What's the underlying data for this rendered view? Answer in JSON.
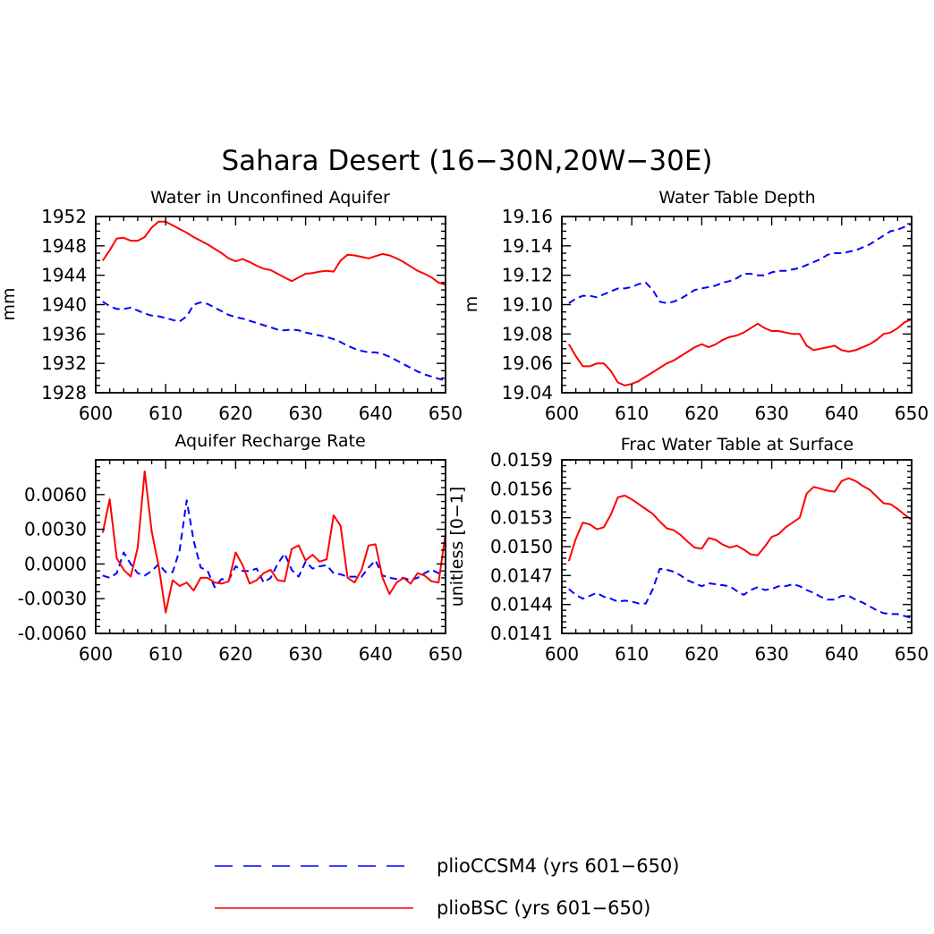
{
  "figure": {
    "title": "Sahara Desert (16−30N,20W−30E)"
  },
  "series_styles": [
    {
      "name": "plioCCSM4 (yrs 601−650)",
      "color": "#0000ff",
      "dash": "dashed"
    },
    {
      "name": "plioBSC (yrs 601−650)",
      "color": "#ff0000",
      "dash": "solid"
    }
  ],
  "chart_data": [
    {
      "type": "line",
      "title": "Water in Unconfined Aquifer",
      "xlabel": "",
      "ylabel": "mm",
      "xlim": [
        600,
        650
      ],
      "ylim": [
        1928,
        1952
      ],
      "xticks": [
        "600",
        "610",
        "620",
        "630",
        "640",
        "650"
      ],
      "yticks": [
        "1928",
        "1932",
        "1936",
        "1940",
        "1944",
        "1948",
        "1952"
      ],
      "x": [
        601,
        602,
        603,
        604,
        605,
        606,
        607,
        608,
        609,
        610,
        611,
        612,
        613,
        614,
        615,
        616,
        617,
        618,
        619,
        620,
        621,
        622,
        623,
        624,
        625,
        626,
        627,
        628,
        629,
        630,
        631,
        632,
        633,
        634,
        635,
        636,
        637,
        638,
        639,
        640,
        641,
        642,
        643,
        644,
        645,
        646,
        647,
        648,
        649,
        650
      ],
      "series": [
        {
          "name": "plioCCSM4 (yrs 601−650)",
          "values": [
            1940.4,
            1939.8,
            1939.4,
            1939.4,
            1939.6,
            1939.2,
            1938.8,
            1938.5,
            1938.4,
            1938.2,
            1937.9,
            1937.7,
            1938.4,
            1940.0,
            1940.3,
            1940.1,
            1939.6,
            1939.1,
            1938.6,
            1938.3,
            1938.1,
            1937.8,
            1937.5,
            1937.2,
            1936.9,
            1936.6,
            1936.5,
            1936.6,
            1936.5,
            1936.2,
            1936.0,
            1935.8,
            1935.6,
            1935.3,
            1934.9,
            1934.4,
            1934.0,
            1933.7,
            1933.5,
            1933.5,
            1933.3,
            1932.9,
            1932.4,
            1931.9,
            1931.4,
            1930.9,
            1930.5,
            1930.2,
            1929.9,
            1929.7
          ]
        },
        {
          "name": "plioBSC (yrs 601−650)",
          "values": [
            1946.0,
            1947.4,
            1949.0,
            1949.1,
            1948.7,
            1948.7,
            1949.2,
            1950.5,
            1951.3,
            1951.3,
            1950.8,
            1950.3,
            1949.8,
            1949.2,
            1948.7,
            1948.2,
            1947.6,
            1947.0,
            1946.3,
            1945.9,
            1946.2,
            1945.8,
            1945.3,
            1944.9,
            1944.7,
            1944.2,
            1943.7,
            1943.2,
            1943.7,
            1944.2,
            1944.3,
            1944.5,
            1944.6,
            1944.5,
            1946.0,
            1946.8,
            1946.7,
            1946.5,
            1946.3,
            1946.6,
            1946.9,
            1946.7,
            1946.3,
            1945.8,
            1945.2,
            1944.6,
            1944.2,
            1943.7,
            1943.0,
            1942.7
          ]
        }
      ]
    },
    {
      "type": "line",
      "title": "Water Table Depth",
      "xlabel": "",
      "ylabel": "m",
      "xlim": [
        600,
        650
      ],
      "ylim": [
        19.04,
        19.16
      ],
      "xticks": [
        "600",
        "610",
        "620",
        "630",
        "640",
        "650"
      ],
      "yticks": [
        "19.04",
        "19.06",
        "19.08",
        "19.10",
        "19.12",
        "19.14",
        "19.16"
      ],
      "x": [
        601,
        602,
        603,
        604,
        605,
        606,
        607,
        608,
        609,
        610,
        611,
        612,
        613,
        614,
        615,
        616,
        617,
        618,
        619,
        620,
        621,
        622,
        623,
        624,
        625,
        626,
        627,
        628,
        629,
        630,
        631,
        632,
        633,
        634,
        635,
        636,
        637,
        638,
        639,
        640,
        641,
        642,
        643,
        644,
        645,
        646,
        647,
        648,
        649,
        650
      ],
      "series": [
        {
          "name": "plioCCSM4 (yrs 601−650)",
          "values": [
            19.101,
            19.104,
            19.106,
            19.106,
            19.105,
            19.107,
            19.109,
            19.111,
            19.111,
            19.112,
            19.114,
            19.115,
            19.11,
            19.102,
            19.101,
            19.102,
            19.104,
            19.107,
            19.11,
            19.111,
            19.112,
            19.113,
            19.115,
            19.116,
            19.118,
            19.121,
            19.121,
            19.12,
            19.12,
            19.122,
            19.123,
            19.123,
            19.124,
            19.125,
            19.127,
            19.129,
            19.131,
            19.134,
            19.135,
            19.135,
            19.136,
            19.137,
            19.139,
            19.141,
            19.144,
            19.147,
            19.15,
            19.151,
            19.153,
            19.155
          ]
        },
        {
          "name": "plioBSC (yrs 601−650)",
          "values": [
            19.073,
            19.065,
            19.058,
            19.058,
            19.06,
            19.06,
            19.055,
            19.047,
            19.045,
            19.046,
            19.048,
            19.051,
            19.054,
            19.057,
            19.06,
            19.062,
            19.065,
            19.068,
            19.071,
            19.073,
            19.071,
            19.073,
            19.076,
            19.078,
            19.079,
            19.081,
            19.084,
            19.087,
            19.084,
            19.082,
            19.082,
            19.081,
            19.08,
            19.08,
            19.072,
            19.069,
            19.07,
            19.071,
            19.072,
            19.069,
            19.068,
            19.069,
            19.071,
            19.073,
            19.076,
            19.08,
            19.081,
            19.084,
            19.088,
            19.09
          ]
        }
      ]
    },
    {
      "type": "line",
      "title": "Aquifer Recharge Rate",
      "xlabel": "",
      "ylabel": "",
      "xlim": [
        600,
        650
      ],
      "ylim": [
        -0.006,
        0.009
      ],
      "xticks": [
        "600",
        "610",
        "620",
        "630",
        "640",
        "650"
      ],
      "ytick_values": [
        -0.006,
        -0.003,
        0.0,
        0.003,
        0.006
      ],
      "yticks": [
        "-0.0060",
        "-0.0030",
        "0.0000",
        "0.0030",
        "0.0060"
      ],
      "x": [
        601,
        602,
        603,
        604,
        605,
        606,
        607,
        608,
        609,
        610,
        611,
        612,
        613,
        614,
        615,
        616,
        617,
        618,
        619,
        620,
        621,
        622,
        623,
        624,
        625,
        626,
        627,
        628,
        629,
        630,
        631,
        632,
        633,
        634,
        635,
        636,
        637,
        638,
        639,
        640,
        641,
        642,
        643,
        644,
        645,
        646,
        647,
        648,
        649,
        650
      ],
      "series": [
        {
          "name": "plioCCSM4 (yrs 601−650)",
          "values": [
            -0.001,
            -0.0012,
            -0.0008,
            0.001,
            0.0,
            -0.0008,
            -0.001,
            -0.0006,
            0.0,
            -0.0007,
            -0.0007,
            0.0012,
            0.0055,
            0.002,
            -0.0003,
            -0.0006,
            -0.002,
            -0.0013,
            -0.0014,
            -0.0002,
            -0.0006,
            -0.0006,
            -0.0004,
            -0.0016,
            -0.0012,
            0.0,
            0.0009,
            -0.0005,
            -0.0011,
            0.0002,
            -0.0004,
            -0.0002,
            -0.0001,
            -0.0008,
            -0.0009,
            -0.0011,
            -0.0011,
            -0.0011,
            -0.0003,
            0.0003,
            -0.001,
            -0.0012,
            -0.0013,
            -0.0012,
            -0.0014,
            -0.0012,
            -0.0008,
            -0.0005,
            -0.0008,
            -0.001
          ]
        },
        {
          "name": "plioBSC (yrs 601−650)",
          "values": [
            0.0027,
            0.0056,
            0.0005,
            -0.0005,
            -0.0011,
            0.0014,
            0.008,
            0.0028,
            -0.0002,
            -0.0042,
            -0.0014,
            -0.0019,
            -0.0016,
            -0.0023,
            -0.0012,
            -0.0012,
            -0.0016,
            -0.0017,
            -0.0015,
            0.001,
            -0.0001,
            -0.0017,
            -0.0014,
            -0.0008,
            -0.0005,
            -0.0014,
            -0.0015,
            0.0013,
            0.0016,
            0.0003,
            0.0008,
            0.0002,
            0.0004,
            0.0042,
            0.0033,
            -0.0012,
            -0.0016,
            -0.0005,
            0.0016,
            0.0017,
            -0.0012,
            -0.0026,
            -0.0016,
            -0.0012,
            -0.0017,
            -0.0008,
            -0.001,
            -0.0015,
            -0.0016,
            0.0026
          ]
        }
      ]
    },
    {
      "type": "line",
      "title": "Frac Water Table at Surface",
      "xlabel": "",
      "ylabel": "unitless [0−1]",
      "xlim": [
        600,
        650
      ],
      "ylim": [
        0.0141,
        0.0159
      ],
      "xticks": [
        "600",
        "610",
        "620",
        "630",
        "640",
        "650"
      ],
      "yticks": [
        "0.0141",
        "0.0144",
        "0.0147",
        "0.0150",
        "0.0153",
        "0.0156",
        "0.0159"
      ],
      "x": [
        601,
        602,
        603,
        604,
        605,
        606,
        607,
        608,
        609,
        610,
        611,
        612,
        613,
        614,
        615,
        616,
        617,
        618,
        619,
        620,
        621,
        622,
        623,
        624,
        625,
        626,
        627,
        628,
        629,
        630,
        631,
        632,
        633,
        634,
        635,
        636,
        637,
        638,
        639,
        640,
        641,
        642,
        643,
        644,
        645,
        646,
        647,
        648,
        649,
        650
      ],
      "series": [
        {
          "name": "plioCCSM4 (yrs 601−650)",
          "values": [
            0.01456,
            0.0145,
            0.01446,
            0.01449,
            0.01452,
            0.01448,
            0.01446,
            0.01443,
            0.01444,
            0.01443,
            0.01441,
            0.01441,
            0.01456,
            0.01477,
            0.01476,
            0.01474,
            0.0147,
            0.01465,
            0.01462,
            0.01459,
            0.01462,
            0.01461,
            0.0146,
            0.01459,
            0.01454,
            0.0145,
            0.01455,
            0.01458,
            0.01455,
            0.01456,
            0.01459,
            0.01459,
            0.01461,
            0.01459,
            0.01455,
            0.01452,
            0.01448,
            0.01445,
            0.01445,
            0.01449,
            0.01449,
            0.01445,
            0.01442,
            0.01438,
            0.01434,
            0.01431,
            0.0143,
            0.0143,
            0.01428,
            0.01426
          ]
        },
        {
          "name": "plioBSC (yrs 601−650)",
          "values": [
            0.01485,
            0.01508,
            0.01525,
            0.01523,
            0.01518,
            0.0152,
            0.01533,
            0.01551,
            0.01553,
            0.01549,
            0.01544,
            0.01539,
            0.01534,
            0.01526,
            0.01519,
            0.01517,
            0.01512,
            0.01505,
            0.01499,
            0.01498,
            0.01509,
            0.01507,
            0.01502,
            0.01499,
            0.01501,
            0.01497,
            0.01492,
            0.01491,
            0.015,
            0.0151,
            0.01513,
            0.0152,
            0.01525,
            0.0153,
            0.01555,
            0.01562,
            0.0156,
            0.01558,
            0.01557,
            0.01568,
            0.01571,
            0.01568,
            0.01563,
            0.01559,
            0.01552,
            0.01545,
            0.01544,
            0.01539,
            0.01533,
            0.01528
          ]
        }
      ]
    }
  ]
}
